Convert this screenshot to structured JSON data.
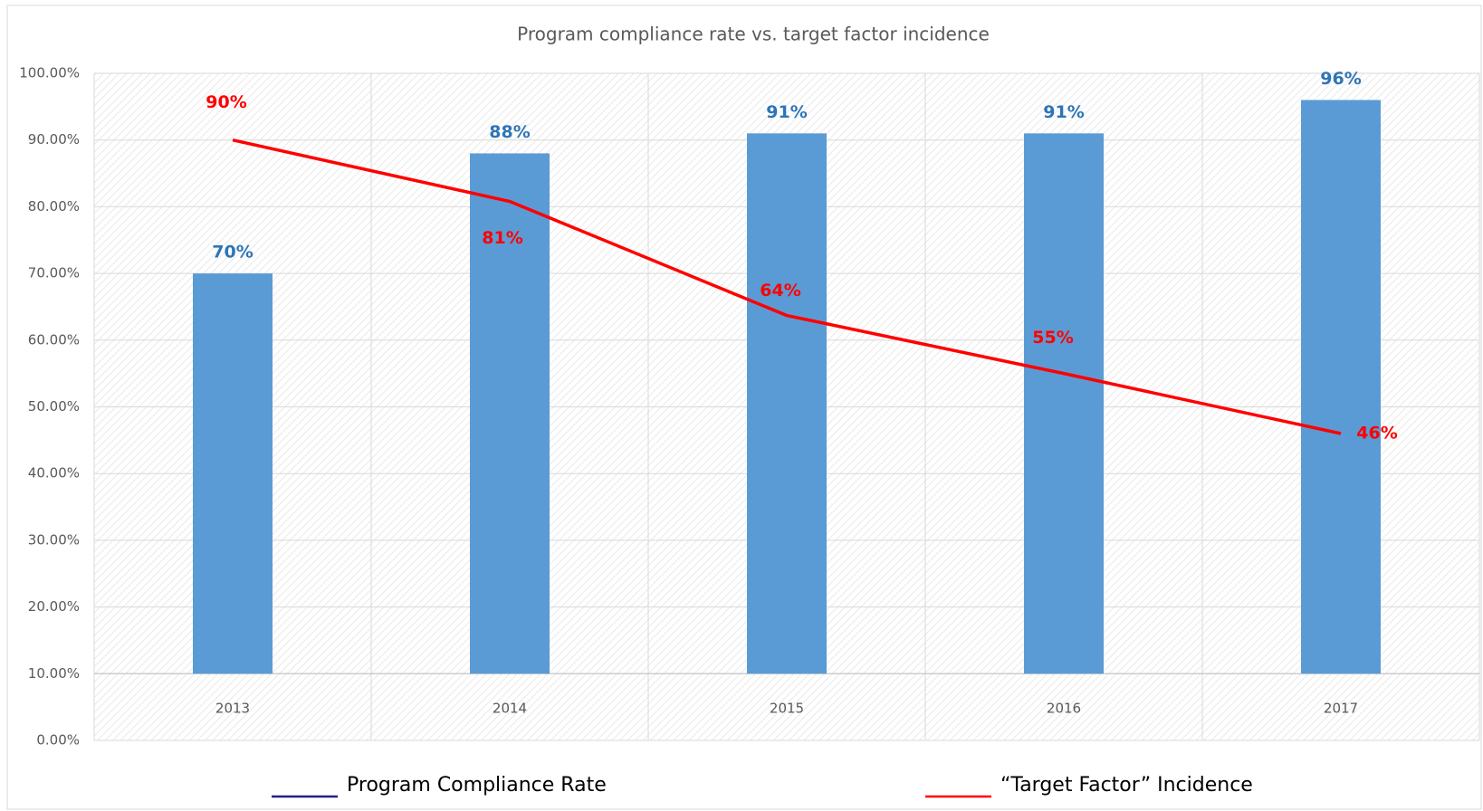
{
  "chart_data": {
    "type": "bar_line",
    "title": "Program compliance rate vs. target factor incidence",
    "categories": [
      "2013",
      "2014",
      "2015",
      "2016",
      "2017"
    ],
    "series": [
      {
        "name": "Program Compliance Rate",
        "type": "bar",
        "color": "#5b9bd5",
        "label_color": "#2e75b6",
        "values": [
          70,
          88,
          91,
          91,
          96
        ],
        "value_labels": [
          "70%",
          "88%",
          "91%",
          "91%",
          "96%"
        ]
      },
      {
        "name": "“Target Factor” Incidence",
        "type": "line",
        "color": "#ff0000",
        "label_color": "#ff0000",
        "values": [
          90,
          80.8,
          63.7,
          55,
          46
        ],
        "value_labels": [
          "90%",
          "81%",
          "64%",
          "55%",
          "46%"
        ]
      }
    ],
    "ylim": [
      0,
      100
    ],
    "yticks": [
      {
        "value": 0,
        "label": "0.00%"
      },
      {
        "value": 10,
        "label": "10.00%"
      },
      {
        "value": 20,
        "label": "20.00%"
      },
      {
        "value": 30,
        "label": "30.00%"
      },
      {
        "value": 40,
        "label": "40.00%"
      },
      {
        "value": 50,
        "label": "50.00%"
      },
      {
        "value": 60,
        "label": "60.00%"
      },
      {
        "value": 70,
        "label": "70.00%"
      },
      {
        "value": 80,
        "label": "80.00%"
      },
      {
        "value": 90,
        "label": "90.00%"
      },
      {
        "value": 100,
        "label": "100.00%"
      }
    ],
    "xaxis_crosses": 10,
    "grid": true,
    "legend": "bottom"
  }
}
